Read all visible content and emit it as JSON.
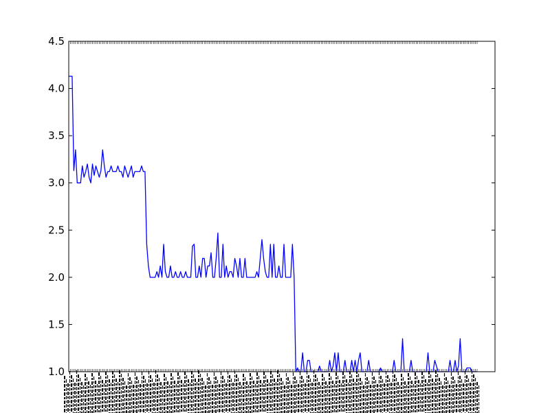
{
  "chart_data": {
    "type": "line",
    "title": "",
    "xlabel": "",
    "ylabel": "",
    "ylim": [
      1.0,
      4.5
    ],
    "yticks": [
      "1.0",
      "1.5",
      "2.0",
      "2.5",
      "3.0",
      "3.5",
      "4.0",
      "4.5"
    ],
    "grid": false,
    "line_color": "#0000ff",
    "x_tick_labels_note": "x tick labels are rotated 90° and overlap into an unreadable band",
    "series": [
      {
        "values": [
          4.13,
          4.13,
          4.13,
          3.13,
          3.35,
          3.0,
          3.0,
          3.0,
          3.18,
          3.06,
          3.12,
          3.2,
          3.06,
          3.0,
          3.2,
          3.08,
          3.18,
          3.12,
          3.06,
          3.13,
          3.35,
          3.18,
          3.06,
          3.12,
          3.12,
          3.18,
          3.12,
          3.12,
          3.12,
          3.18,
          3.12,
          3.12,
          3.06,
          3.18,
          3.12,
          3.06,
          3.12,
          3.18,
          3.06,
          3.12,
          3.12,
          3.12,
          3.12,
          3.18,
          3.12,
          3.12,
          2.35,
          2.12,
          2.0,
          2.0,
          2.0,
          2.0,
          2.06,
          2.0,
          2.12,
          2.0,
          2.35,
          2.06,
          2.0,
          2.0,
          2.12,
          2.0,
          2.0,
          2.06,
          2.0,
          2.0,
          2.06,
          2.0,
          2.0,
          2.06,
          2.0,
          2.0,
          2.0,
          2.33,
          2.35,
          2.0,
          2.0,
          2.12,
          2.0,
          2.2,
          2.2,
          2.0,
          2.12,
          2.12,
          2.26,
          2.0,
          2.0,
          2.2,
          2.47,
          2.0,
          2.0,
          2.35,
          2.0,
          2.12,
          2.0,
          2.06,
          2.06,
          2.0,
          2.2,
          2.12,
          2.0,
          2.2,
          2.0,
          2.0,
          2.2,
          2.0,
          2.0,
          2.0,
          2.0,
          2.0,
          2.0,
          2.06,
          2.0,
          2.2,
          2.4,
          2.2,
          2.06,
          2.0,
          2.0,
          2.35,
          2.0,
          2.35,
          2.0,
          2.0,
          2.12,
          2.0,
          2.0,
          2.35,
          2.0,
          2.0,
          2.0,
          2.0,
          2.35,
          2.0,
          1.0,
          1.04,
          1.0,
          1.0,
          1.2,
          1.0,
          1.0,
          1.12,
          1.12,
          1.0,
          1.0,
          1.0,
          1.0,
          1.0,
          1.06,
          1.0,
          1.0,
          1.0,
          1.0,
          1.0,
          1.12,
          1.0,
          1.06,
          1.2,
          1.0,
          1.2,
          1.0,
          1.0,
          1.0,
          1.12,
          1.0,
          1.0,
          1.0,
          1.12,
          1.0,
          1.12,
          1.0,
          1.12,
          1.2,
          1.0,
          1.0,
          1.0,
          1.0,
          1.12,
          1.0,
          1.0,
          1.0,
          1.0,
          1.0,
          1.0,
          1.04,
          1.0,
          1.0,
          1.0,
          1.0,
          1.0,
          1.0,
          1.0,
          1.12,
          1.0,
          1.0,
          1.0,
          1.0,
          1.35,
          1.0,
          1.0,
          1.0,
          1.0,
          1.12,
          1.0,
          1.0,
          1.0,
          1.0,
          1.0,
          1.0,
          1.0,
          1.0,
          1.0,
          1.2,
          1.0,
          1.0,
          1.0,
          1.12,
          1.06,
          1.0,
          1.0,
          1.0,
          1.0,
          1.0,
          1.0,
          1.0,
          1.12,
          1.0,
          1.0,
          1.12,
          1.0,
          1.06,
          1.35,
          1.0,
          1.0,
          1.0,
          1.04,
          1.04,
          1.04,
          1.0,
          1.0,
          1.0,
          1.0
        ]
      }
    ]
  }
}
